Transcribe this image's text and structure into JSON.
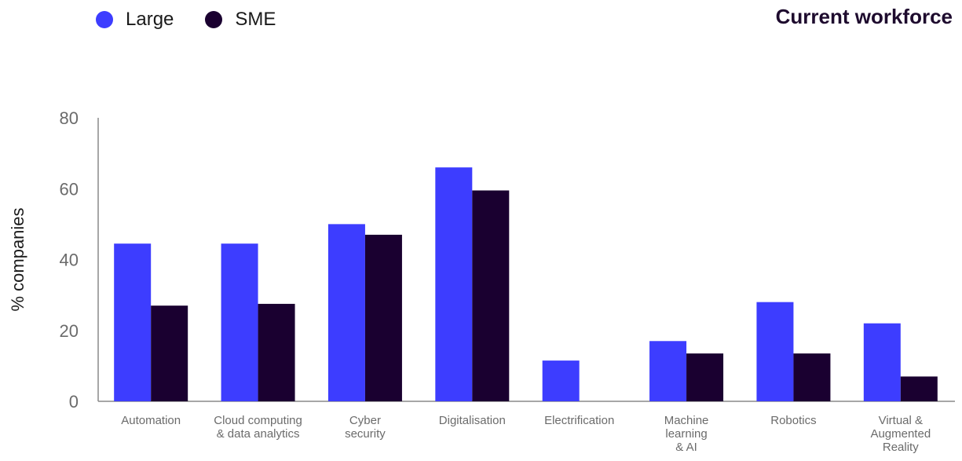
{
  "legend": {
    "large_label": "Large",
    "sme_label": "SME"
  },
  "chart_title": "Current workforce",
  "colors": {
    "large": "#3d3dff",
    "sme": "#1a0030",
    "axis": "#8a8a8a"
  },
  "chart_data": {
    "type": "bar",
    "title": "Current workforce",
    "ylabel": "% companies",
    "xlabel": "",
    "ylim": [
      0,
      80
    ],
    "yticks": [
      0,
      20,
      40,
      60,
      80
    ],
    "categories": [
      "Automation",
      "Cloud computing & data analytics",
      "Cyber security",
      "Digitalisation",
      "Electrification",
      "Machine learning & AI",
      "Robotics",
      "Virtual & Augmented Reality"
    ],
    "category_lines": [
      [
        "Automation"
      ],
      [
        "Cloud computing",
        "& data analytics"
      ],
      [
        "Cyber",
        "security"
      ],
      [
        "Digitalisation"
      ],
      [
        "Electrification"
      ],
      [
        "Machine",
        "learning",
        "& AI"
      ],
      [
        "Robotics"
      ],
      [
        "Virtual &",
        "Augmented",
        "Reality"
      ]
    ],
    "series": [
      {
        "name": "Large",
        "values": [
          44.5,
          44.5,
          50,
          66,
          11.5,
          17,
          28,
          22
        ]
      },
      {
        "name": "SME",
        "values": [
          27,
          27.5,
          47,
          59.5,
          0,
          13.5,
          13.5,
          7
        ]
      }
    ],
    "legend_position": "top-left",
    "grid": false
  }
}
